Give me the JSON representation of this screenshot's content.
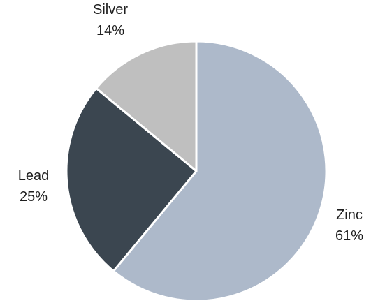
{
  "chart_data": {
    "type": "pie",
    "start_angle_deg": 0,
    "direction": "clockwise",
    "slices": [
      {
        "label": "Zinc",
        "value": 61,
        "value_text": "61%",
        "color": "#adb9ca",
        "label_side": "right"
      },
      {
        "label": "Lead",
        "value": 25,
        "value_text": "25%",
        "color": "#3b4650",
        "label_side": "left"
      },
      {
        "label": "Silver",
        "value": 14,
        "value_text": "14%",
        "color": "#bfbfbf",
        "label_side": "top"
      }
    ]
  }
}
